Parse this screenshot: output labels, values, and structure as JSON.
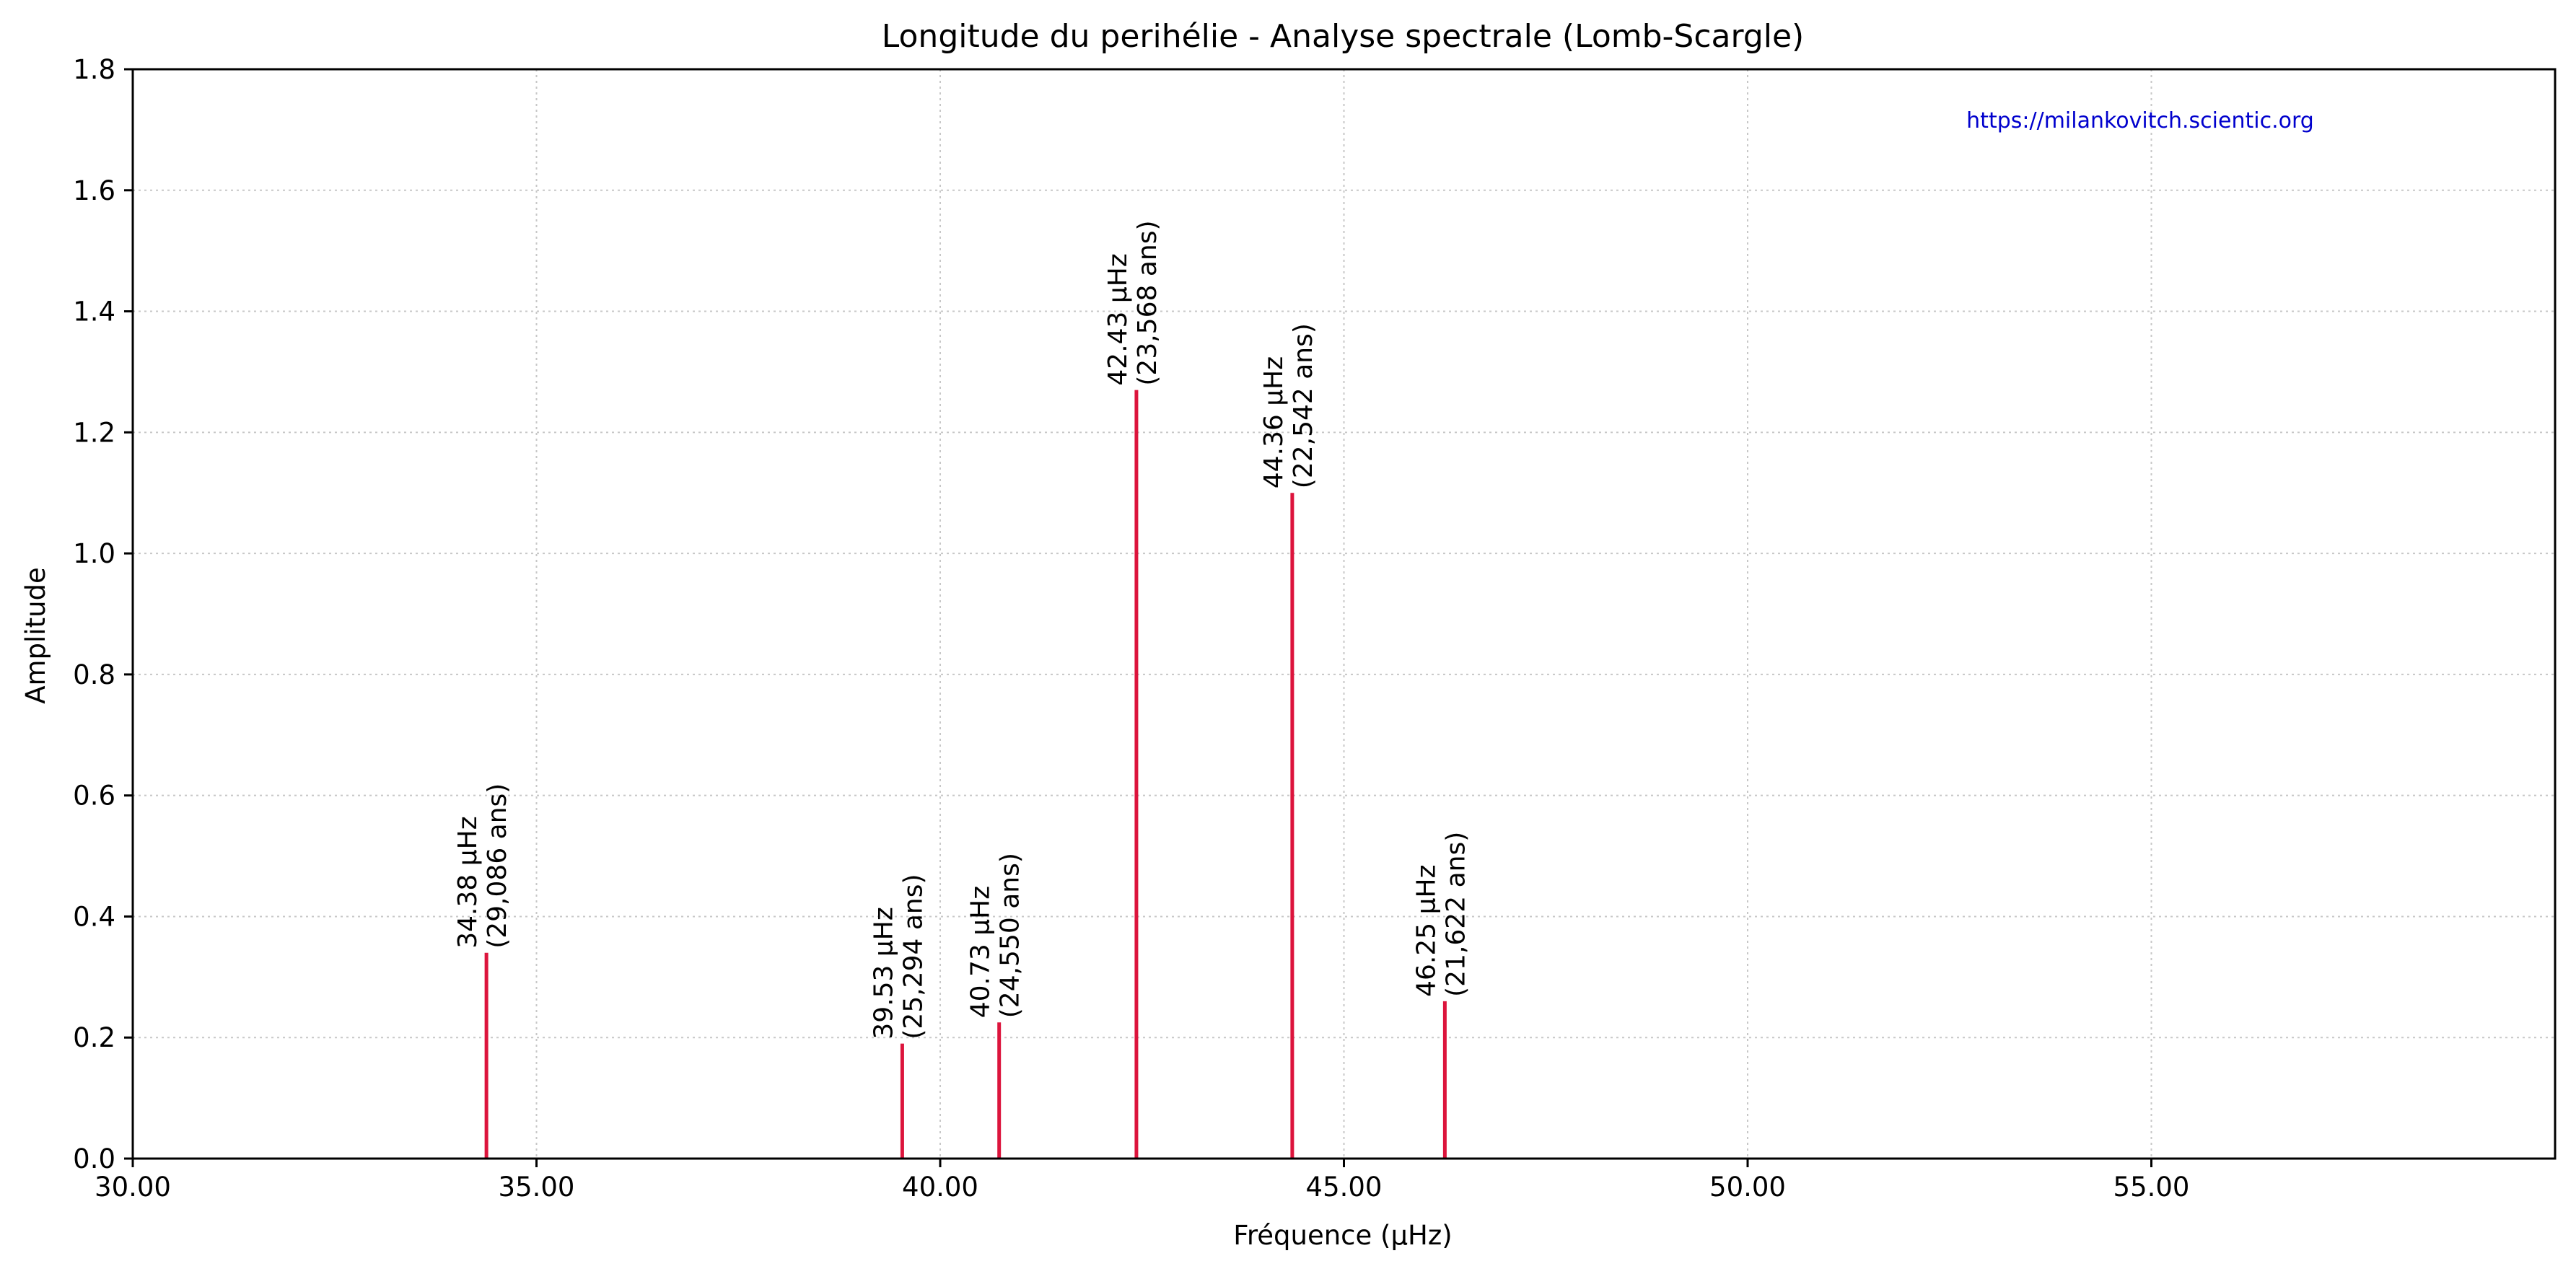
{
  "chart_data": {
    "type": "bar",
    "title": "Longitude du perihélie - Analyse spectrale (Lomb-Scargle)",
    "xlabel": "Fréquence (µHz)",
    "ylabel": "Amplitude",
    "xlim": [
      30,
      60
    ],
    "ylim": [
      0,
      1.8
    ],
    "x_ticks": [
      30,
      35,
      40,
      45,
      50,
      55
    ],
    "x_tick_labels": [
      "30.00",
      "35.00",
      "40.00",
      "45.00",
      "50.00",
      "55.00"
    ],
    "y_ticks": [
      0,
      0.2,
      0.4,
      0.6,
      0.8,
      1.0,
      1.2,
      1.4,
      1.6,
      1.8
    ],
    "y_tick_labels": [
      "0.0",
      "0.2",
      "0.4",
      "0.6",
      "0.8",
      "1.0",
      "1.2",
      "1.4",
      "1.6",
      "1.8"
    ],
    "grid": true,
    "line_color": "#dc143c",
    "series": [
      {
        "peaks": [
          {
            "x": 34.38,
            "y": 0.34,
            "label_freq": "34.38 µHz",
            "label_period": "(29,086 ans)"
          },
          {
            "x": 39.53,
            "y": 0.19,
            "label_freq": "39.53 µHz",
            "label_period": "(25,294 ans)"
          },
          {
            "x": 40.73,
            "y": 0.225,
            "label_freq": "40.73 µHz",
            "label_period": "(24,550 ans)"
          },
          {
            "x": 42.43,
            "y": 1.27,
            "label_freq": "42.43 µHz",
            "label_period": "(23,568 ans)"
          },
          {
            "x": 44.36,
            "y": 1.1,
            "label_freq": "44.36 µHz",
            "label_period": "(22,542 ans)"
          },
          {
            "x": 46.25,
            "y": 0.26,
            "label_freq": "46.25 µHz",
            "label_period": "(21,622 ans)"
          }
        ]
      }
    ],
    "annotation": {
      "text": "https://milankovitch.scientic.org",
      "color": "#0000cd"
    }
  }
}
